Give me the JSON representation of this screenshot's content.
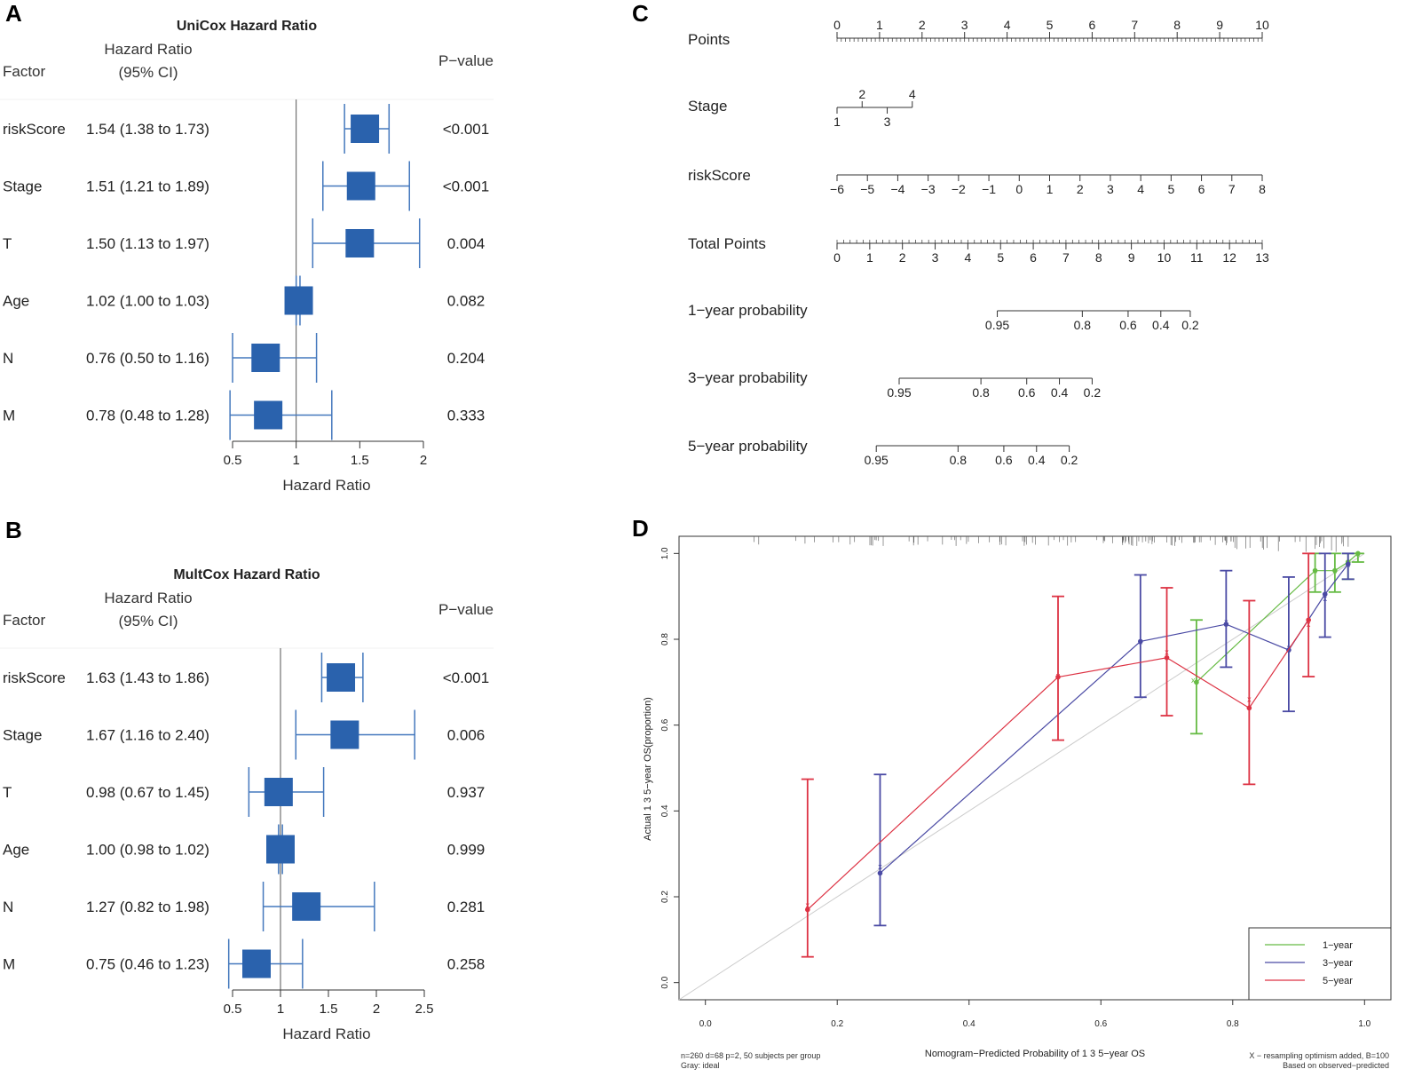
{
  "panels": {
    "a": "A",
    "b": "B",
    "c": "C",
    "d": "D"
  },
  "colors": {
    "forest": "#2a62ad",
    "forest_ci": "#4478bd",
    "y1": "#66bb44",
    "y3": "#4a4aa4",
    "y5": "#dd3344",
    "ideal": "#cccccc"
  },
  "forest_headers": {
    "factor": "Factor",
    "hr": "Hazard Ratio",
    "ci": "(95% CI)",
    "pval": "P−value",
    "xlabel": "Hazard Ratio"
  },
  "chart_data": [
    {
      "type": "forest",
      "title": "UniCox Hazard Ratio",
      "xlabel": "Hazard Ratio",
      "xticks": [
        0.5,
        1,
        1.5,
        2
      ],
      "xticklabels": [
        "0.5",
        "1",
        "1.5",
        "2"
      ],
      "xlim": [
        0.5,
        2
      ],
      "reference": 1,
      "rows": [
        {
          "factor": "riskScore",
          "hr": 1.54,
          "lo": 1.38,
          "hi": 1.73,
          "label": "1.54 (1.38 to 1.73)",
          "p": "<0.001"
        },
        {
          "factor": "Stage",
          "hr": 1.51,
          "lo": 1.21,
          "hi": 1.89,
          "label": "1.51 (1.21 to 1.89)",
          "p": "<0.001"
        },
        {
          "factor": "T",
          "hr": 1.5,
          "lo": 1.13,
          "hi": 1.97,
          "label": "1.50 (1.13 to 1.97)",
          "p": "0.004"
        },
        {
          "factor": "Age",
          "hr": 1.02,
          "lo": 1.0,
          "hi": 1.03,
          "label": "1.02 (1.00 to 1.03)",
          "p": "0.082"
        },
        {
          "factor": "N",
          "hr": 0.76,
          "lo": 0.5,
          "hi": 1.16,
          "label": "0.76 (0.50 to 1.16)",
          "p": "0.204"
        },
        {
          "factor": "M",
          "hr": 0.78,
          "lo": 0.48,
          "hi": 1.28,
          "label": "0.78 (0.48 to 1.28)",
          "p": "0.333"
        }
      ]
    },
    {
      "type": "forest",
      "title": "MultCox Hazard Ratio",
      "xlabel": "Hazard Ratio",
      "xticks": [
        0.5,
        1,
        1.5,
        2,
        2.5
      ],
      "xticklabels": [
        "0.5",
        "1",
        "1.5",
        "2",
        "2.5"
      ],
      "xlim": [
        0.5,
        2.5
      ],
      "reference": 1,
      "rows": [
        {
          "factor": "riskScore",
          "hr": 1.63,
          "lo": 1.43,
          "hi": 1.86,
          "label": "1.63 (1.43 to 1.86)",
          "p": "<0.001"
        },
        {
          "factor": "Stage",
          "hr": 1.67,
          "lo": 1.16,
          "hi": 2.4,
          "label": "1.67 (1.16 to 2.40)",
          "p": "0.006"
        },
        {
          "factor": "T",
          "hr": 0.98,
          "lo": 0.67,
          "hi": 1.45,
          "label": "0.98 (0.67 to 1.45)",
          "p": "0.937"
        },
        {
          "factor": "Age",
          "hr": 1.0,
          "lo": 0.98,
          "hi": 1.02,
          "label": "1.00 (0.98 to 1.02)",
          "p": "0.999"
        },
        {
          "factor": "N",
          "hr": 1.27,
          "lo": 0.82,
          "hi": 1.98,
          "label": "1.27 (0.82 to 1.98)",
          "p": "0.281"
        },
        {
          "factor": "M",
          "hr": 0.75,
          "lo": 0.46,
          "hi": 1.23,
          "label": "0.75 (0.46 to 1.23)",
          "p": "0.258"
        }
      ]
    },
    {
      "type": "nomogram",
      "rows": [
        {
          "name": "Points",
          "min": 0,
          "max": 10,
          "ticks": [
            0,
            1,
            2,
            3,
            4,
            5,
            6,
            7,
            8,
            9,
            10
          ],
          "labels": [
            "0",
            "1",
            "2",
            "3",
            "4",
            "5",
            "6",
            "7",
            "8",
            "9",
            "10"
          ],
          "minor": 0.1,
          "labelPos": "above"
        },
        {
          "name": "Stage",
          "min": 1,
          "max": 4,
          "ticks": [
            1,
            2,
            3,
            4
          ],
          "labels": [
            "1",
            "2",
            "3",
            "4"
          ],
          "labelPos": "alternate"
        },
        {
          "name": "riskScore",
          "min": -6,
          "max": 8,
          "ticks": [
            -6,
            -5,
            -4,
            -3,
            -2,
            -1,
            0,
            1,
            2,
            3,
            4,
            5,
            6,
            7,
            8
          ],
          "labels": [
            "−6",
            "−5",
            "−4",
            "−3",
            "−2",
            "−1",
            "0",
            "1",
            "2",
            "3",
            "4",
            "5",
            "6",
            "7",
            "8"
          ],
          "labelPos": "below"
        },
        {
          "name": "Total Points",
          "min": 0,
          "max": 13,
          "ticks": [
            0,
            1,
            2,
            3,
            4,
            5,
            6,
            7,
            8,
            9,
            10,
            11,
            12,
            13
          ],
          "labels": [
            "0",
            "1",
            "2",
            "3",
            "4",
            "5",
            "6",
            "7",
            "8",
            "9",
            "10",
            "11",
            "12",
            "13"
          ],
          "minor": 0.2,
          "labelPos": "below"
        },
        {
          "name": "1−year probability",
          "min": 4.9,
          "max": 10.8,
          "ticks": [
            4.9,
            7.5,
            8.9,
            9.9,
            10.8
          ],
          "labels": [
            "0.95",
            "0.8",
            "0.6",
            "0.4",
            "0.2"
          ],
          "labelPos": "below"
        },
        {
          "name": "3−year probability",
          "min": 1.9,
          "max": 7.8,
          "ticks": [
            1.9,
            4.4,
            5.8,
            6.8,
            7.8
          ],
          "labels": [
            "0.95",
            "0.8",
            "0.6",
            "0.4",
            "0.2"
          ],
          "labelPos": "below"
        },
        {
          "name": "5−year probability",
          "min": 1.2,
          "max": 7.1,
          "ticks": [
            1.2,
            3.7,
            5.1,
            6.1,
            7.1
          ],
          "labels": [
            "0.95",
            "0.8",
            "0.6",
            "0.4",
            "0.2"
          ],
          "labelPos": "below"
        }
      ]
    },
    {
      "type": "line",
      "title": "",
      "xlabel": "Nomogram−Predicted Probability of 1 3 5−year OS",
      "ylabel": "Actual 1 3 5−year OS(proportion)",
      "xlim": [
        -0.04,
        1.04
      ],
      "ylim": [
        -0.04,
        1.04
      ],
      "xticks": [
        "0.0",
        "0.2",
        "0.4",
        "0.6",
        "0.8",
        "1.0"
      ],
      "yticks": [
        "0.0",
        "0.2",
        "0.4",
        "0.6",
        "0.8",
        "1.0"
      ],
      "note_left": [
        "n=260 d=68 p=2, 50 subjects per group",
        "Gray: ideal"
      ],
      "note_right": [
        "X − resampling optimism added, B=100",
        "Based on observed−predicted"
      ],
      "legend": [
        "1−year",
        "3−year",
        "5−year"
      ],
      "series": [
        {
          "name": "1-year",
          "color": "#66bb44",
          "points": [
            {
              "x": 0.745,
              "y": 0.7,
              "lo": 0.58,
              "hi": 0.845,
              "xc": 0.74,
              "yc": 0.705
            },
            {
              "x": 0.925,
              "y": 0.96,
              "lo": 0.91,
              "hi": 1.0,
              "xc": 0.925,
              "yc": 0.96
            },
            {
              "x": 0.955,
              "y": 0.96,
              "lo": 0.91,
              "hi": 1.0,
              "xc": 0.955,
              "yc": 0.96
            },
            {
              "x": 0.975,
              "y": 0.98,
              "lo": 0.94,
              "hi": 1.0,
              "xc": 0.975,
              "yc": 0.975
            },
            {
              "x": 0.99,
              "y": 1.0,
              "lo": 0.98,
              "hi": 1.0,
              "xc": 0.99,
              "yc": 1.0
            }
          ]
        },
        {
          "name": "3-year",
          "color": "#4a4aa4",
          "points": [
            {
              "x": 0.265,
              "y": 0.255,
              "lo": 0.133,
              "hi": 0.485,
              "xc": 0.265,
              "yc": 0.27
            },
            {
              "x": 0.66,
              "y": 0.795,
              "lo": 0.665,
              "hi": 0.95,
              "xc": 0.66,
              "yc": 0.795
            },
            {
              "x": 0.79,
              "y": 0.835,
              "lo": 0.735,
              "hi": 0.96,
              "xc": 0.79,
              "yc": 0.84
            },
            {
              "x": 0.885,
              "y": 0.775,
              "lo": 0.632,
              "hi": 0.945,
              "xc": 0.885,
              "yc": 0.78
            },
            {
              "x": 0.94,
              "y": 0.905,
              "lo": 0.805,
              "hi": 1.0,
              "xc": 0.94,
              "yc": 0.895
            },
            {
              "x": 0.975,
              "y": 0.975,
              "lo": 0.94,
              "hi": 1.0,
              "xc": 0.975,
              "yc": 0.975
            }
          ]
        },
        {
          "name": "5-year",
          "color": "#dd3344",
          "points": [
            {
              "x": 0.155,
              "y": 0.17,
              "lo": 0.06,
              "hi": 0.474,
              "xc": 0.155,
              "yc": 0.18
            },
            {
              "x": 0.535,
              "y": 0.712,
              "lo": 0.565,
              "hi": 0.9,
              "xc": 0.535,
              "yc": 0.715
            },
            {
              "x": 0.7,
              "y": 0.757,
              "lo": 0.622,
              "hi": 0.92,
              "xc": 0.7,
              "yc": 0.77
            },
            {
              "x": 0.825,
              "y": 0.64,
              "lo": 0.462,
              "hi": 0.89,
              "xc": 0.825,
              "yc": 0.66
            },
            {
              "x": 0.915,
              "y": 0.845,
              "lo": 0.713,
              "hi": 1.0,
              "xc": 0.915,
              "yc": 0.835
            }
          ]
        }
      ]
    }
  ]
}
